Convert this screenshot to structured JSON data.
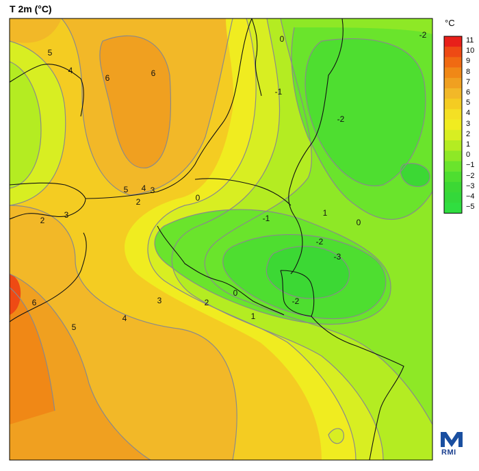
{
  "title": "T 2m (°C)",
  "colorbar": {
    "unit": "°C",
    "levels": [
      "11",
      "10",
      "9",
      "8",
      "7",
      "6",
      "5",
      "4",
      "3",
      "2",
      "1",
      "0",
      "−1",
      "−2",
      "−3",
      "−4",
      "−5"
    ],
    "colors": [
      "#e8201a",
      "#ee4a14",
      "#f06a12",
      "#f08816",
      "#f0a020",
      "#f2b828",
      "#f4cc22",
      "#f4e024",
      "#f0ec20",
      "#d8ee22",
      "#b4ec22",
      "#8ee826",
      "#6ae42c",
      "#4ede30",
      "#3cd834",
      "#34d83a",
      "#30de40"
    ]
  },
  "contour_labels": [
    {
      "text": "5"
    },
    {
      "text": "4"
    },
    {
      "text": "6"
    },
    {
      "text": "6"
    },
    {
      "text": "0"
    },
    {
      "text": "-1"
    },
    {
      "text": "-2"
    },
    {
      "text": "-2"
    },
    {
      "text": "5"
    },
    {
      "text": "4"
    },
    {
      "text": "3"
    },
    {
      "text": "2"
    },
    {
      "text": "0"
    },
    {
      "text": "2"
    },
    {
      "text": "3"
    },
    {
      "text": "-1"
    },
    {
      "text": "1"
    },
    {
      "text": "0"
    },
    {
      "text": "-2"
    },
    {
      "text": "-3"
    },
    {
      "text": "6"
    },
    {
      "text": "3"
    },
    {
      "text": "2"
    },
    {
      "text": "0"
    },
    {
      "text": "-2"
    },
    {
      "text": "1"
    },
    {
      "text": "4"
    },
    {
      "text": "5"
    }
  ],
  "logo": {
    "name": "rmi-logo",
    "text": "RMI"
  }
}
